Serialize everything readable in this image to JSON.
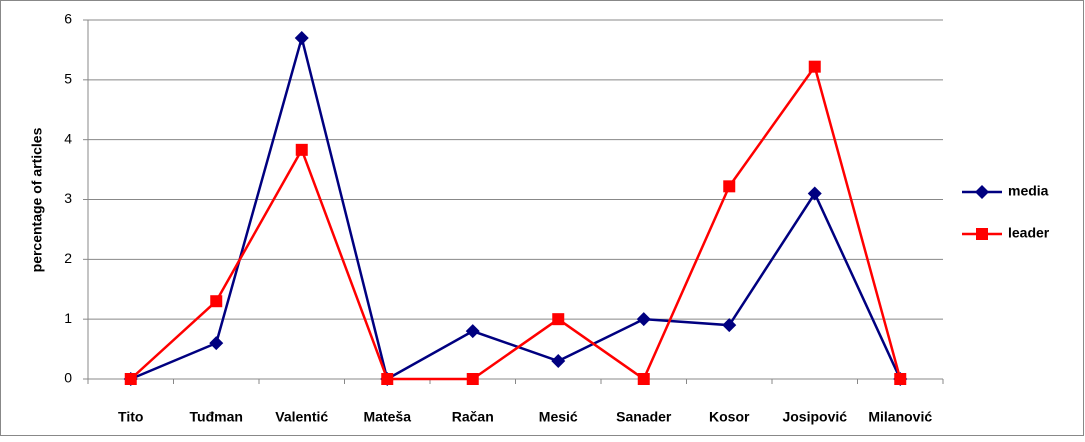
{
  "chart_data": {
    "type": "line",
    "y_label": "percentage of articles",
    "categories": [
      "Tito",
      "Tuđman",
      "Valentić",
      "Mateša",
      "Račan",
      "Mesić",
      "Sanader",
      "Kosor",
      "Josipović",
      "Milanović"
    ],
    "series": [
      {
        "name": "media",
        "color": "#000080",
        "marker": "diamond",
        "values": [
          0,
          0.6,
          5.7,
          0,
          0.8,
          0.3,
          1.0,
          0.9,
          3.1,
          0
        ]
      },
      {
        "name": "leader",
        "color": "#ff0000",
        "marker": "square",
        "values": [
          0,
          1.3,
          3.83,
          0,
          0,
          1.0,
          0,
          3.22,
          5.22,
          0
        ]
      }
    ],
    "ylim": [
      0,
      6
    ],
    "yticks": [
      0,
      1,
      2,
      3,
      4,
      5,
      6
    ],
    "grid": true,
    "legend": "right"
  }
}
